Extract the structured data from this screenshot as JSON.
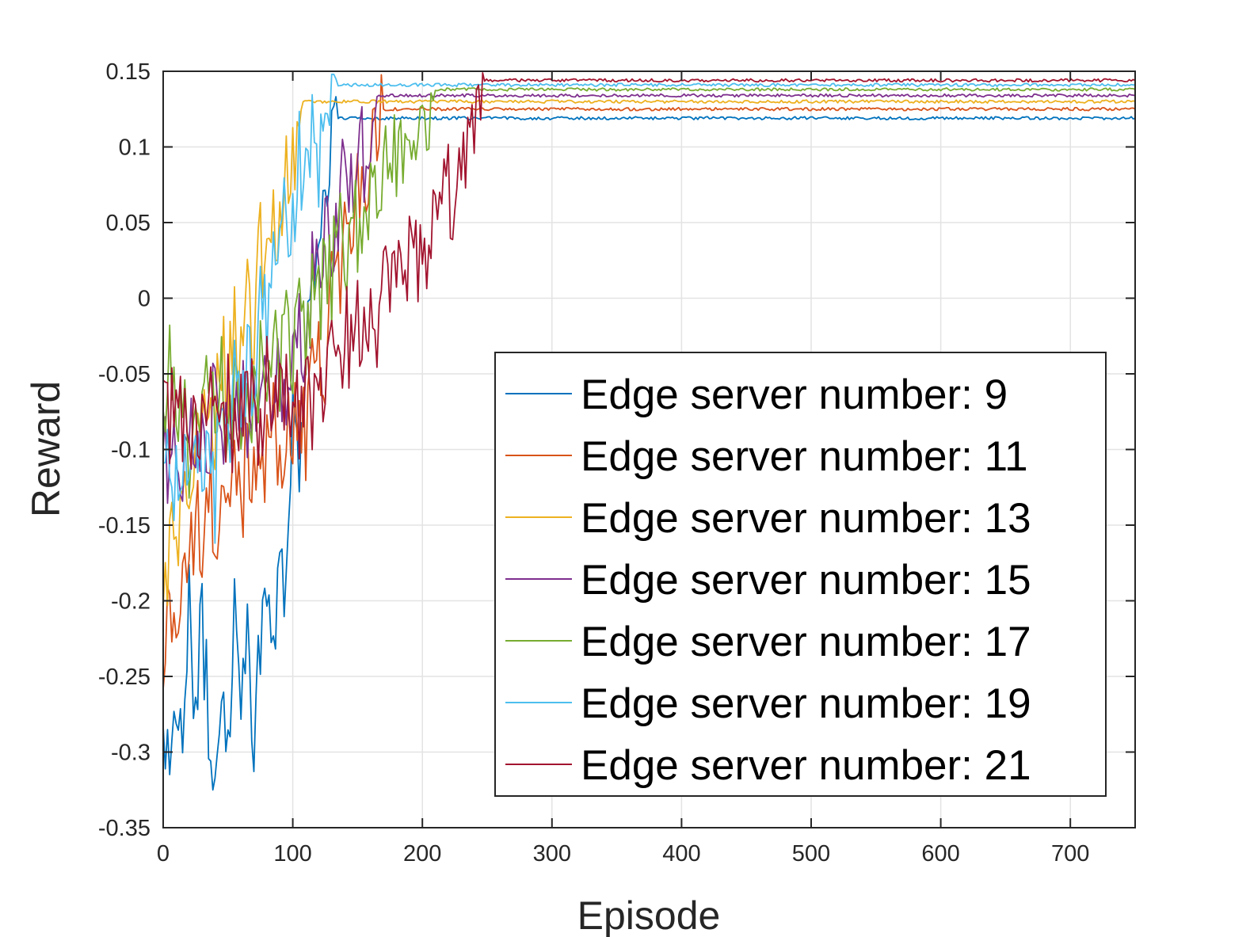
{
  "chart_data": {
    "type": "line",
    "title": "",
    "xlabel": "Episode",
    "ylabel": "Reward",
    "xlim": [
      0,
      750
    ],
    "ylim": [
      -0.35,
      0.15
    ],
    "xticks": [
      "0",
      "100",
      "200",
      "300",
      "400",
      "500",
      "600",
      "700"
    ],
    "yticks": [
      "0.15",
      "0.1",
      "0.05",
      "0",
      "-0.05",
      "-0.1",
      "-0.15",
      "-0.2",
      "-0.25",
      "-0.3",
      "-0.35"
    ],
    "grid": true,
    "legend_position": "lower-right",
    "series": [
      {
        "name": "Edge server number: 9",
        "color": "#0072BD",
        "converge_episode": 135,
        "final": 0.119,
        "points": [
          [
            0,
            -0.27
          ],
          [
            5,
            -0.31
          ],
          [
            10,
            -0.25
          ],
          [
            15,
            -0.3
          ],
          [
            20,
            -0.21
          ],
          [
            25,
            -0.26
          ],
          [
            30,
            -0.22
          ],
          [
            35,
            -0.28
          ],
          [
            40,
            -0.33
          ],
          [
            45,
            -0.24
          ],
          [
            50,
            -0.29
          ],
          [
            55,
            -0.2
          ],
          [
            60,
            -0.27
          ],
          [
            65,
            -0.19
          ],
          [
            70,
            -0.31
          ],
          [
            75,
            -0.22
          ],
          [
            80,
            -0.18
          ],
          [
            85,
            -0.24
          ],
          [
            90,
            -0.15
          ],
          [
            95,
            -0.19
          ],
          [
            100,
            -0.08
          ],
          [
            105,
            -0.11
          ],
          [
            110,
            -0.03
          ],
          [
            115,
            0.01
          ],
          [
            120,
            0.04
          ],
          [
            125,
            0.08
          ],
          [
            130,
            0.1
          ],
          [
            135,
            0.119
          ],
          [
            750,
            0.119
          ]
        ]
      },
      {
        "name": "Edge server number: 11",
        "color": "#D95319",
        "converge_episode": 170,
        "final": 0.125,
        "points": [
          [
            0,
            -0.25
          ],
          [
            5,
            -0.2
          ],
          [
            10,
            -0.22
          ],
          [
            15,
            -0.17
          ],
          [
            20,
            -0.19
          ],
          [
            25,
            -0.14
          ],
          [
            30,
            -0.18
          ],
          [
            35,
            -0.12
          ],
          [
            40,
            -0.16
          ],
          [
            45,
            -0.13
          ],
          [
            50,
            -0.15
          ],
          [
            55,
            -0.11
          ],
          [
            60,
            -0.14
          ],
          [
            65,
            -0.09
          ],
          [
            70,
            -0.12
          ],
          [
            75,
            -0.08
          ],
          [
            80,
            -0.11
          ],
          [
            85,
            -0.07
          ],
          [
            90,
            -0.13
          ],
          [
            95,
            -0.08
          ],
          [
            100,
            -0.1
          ],
          [
            105,
            -0.06
          ],
          [
            110,
            -0.09
          ],
          [
            115,
            -0.04
          ],
          [
            120,
            -0.02
          ],
          [
            125,
            -0.05
          ],
          [
            130,
            0.02
          ],
          [
            135,
            0.0
          ],
          [
            140,
            0.05
          ],
          [
            145,
            0.03
          ],
          [
            150,
            0.08
          ],
          [
            155,
            0.06
          ],
          [
            160,
            0.1
          ],
          [
            165,
            0.12
          ],
          [
            170,
            0.125
          ],
          [
            750,
            0.125
          ]
        ]
      },
      {
        "name": "Edge server number: 13",
        "color": "#EDB120",
        "converge_episode": 108,
        "final": 0.13,
        "points": [
          [
            0,
            -0.2
          ],
          [
            5,
            -0.16
          ],
          [
            10,
            -0.18
          ],
          [
            15,
            -0.12
          ],
          [
            20,
            -0.14
          ],
          [
            25,
            -0.09
          ],
          [
            30,
            -0.11
          ],
          [
            35,
            -0.06
          ],
          [
            40,
            -0.08
          ],
          [
            45,
            -0.03
          ],
          [
            50,
            -0.06
          ],
          [
            55,
            -0.01
          ],
          [
            60,
            -0.04
          ],
          [
            65,
            0.0
          ],
          [
            70,
            -0.02
          ],
          [
            75,
            0.03
          ],
          [
            80,
            0.02
          ],
          [
            85,
            0.06
          ],
          [
            90,
            0.05
          ],
          [
            95,
            0.09
          ],
          [
            100,
            0.08
          ],
          [
            105,
            0.11
          ],
          [
            108,
            0.13
          ],
          [
            750,
            0.13
          ]
        ]
      },
      {
        "name": "Edge server number: 15",
        "color": "#7E2F8E",
        "converge_episode": 165,
        "final": 0.134,
        "points": [
          [
            0,
            -0.1
          ],
          [
            5,
            -0.13
          ],
          [
            10,
            -0.09
          ],
          [
            15,
            -0.12
          ],
          [
            20,
            -0.08
          ],
          [
            25,
            -0.11
          ],
          [
            30,
            -0.07
          ],
          [
            35,
            -0.1
          ],
          [
            40,
            -0.06
          ],
          [
            45,
            -0.09
          ],
          [
            50,
            -0.07
          ],
          [
            55,
            -0.1
          ],
          [
            60,
            -0.06
          ],
          [
            65,
            -0.08
          ],
          [
            70,
            -0.05
          ],
          [
            75,
            -0.09
          ],
          [
            80,
            -0.06
          ],
          [
            85,
            -0.08
          ],
          [
            90,
            -0.04
          ],
          [
            95,
            -0.07
          ],
          [
            100,
            -0.03
          ],
          [
            105,
            -0.01
          ],
          [
            110,
            -0.04
          ],
          [
            115,
            0.02
          ],
          [
            120,
            0.0
          ],
          [
            125,
            0.04
          ],
          [
            130,
            0.03
          ],
          [
            135,
            0.06
          ],
          [
            140,
            0.08
          ],
          [
            145,
            0.07
          ],
          [
            150,
            0.1
          ],
          [
            155,
            0.09
          ],
          [
            160,
            0.12
          ],
          [
            165,
            0.134
          ],
          [
            750,
            0.134
          ]
        ]
      },
      {
        "name": "Edge server number: 17",
        "color": "#77AC30",
        "converge_episode": 210,
        "final": 0.138,
        "points": [
          [
            0,
            -0.08
          ],
          [
            5,
            -0.05
          ],
          [
            10,
            -0.09
          ],
          [
            15,
            -0.06
          ],
          [
            20,
            -0.1
          ],
          [
            25,
            -0.07
          ],
          [
            30,
            -0.09
          ],
          [
            35,
            -0.05
          ],
          [
            40,
            -0.08
          ],
          [
            45,
            -0.06
          ],
          [
            50,
            -0.09
          ],
          [
            55,
            -0.06
          ],
          [
            60,
            -0.08
          ],
          [
            65,
            -0.05
          ],
          [
            70,
            -0.07
          ],
          [
            75,
            -0.04
          ],
          [
            80,
            -0.06
          ],
          [
            85,
            -0.03
          ],
          [
            90,
            -0.05
          ],
          [
            95,
            -0.02
          ],
          [
            100,
            -0.04
          ],
          [
            105,
            -0.01
          ],
          [
            110,
            -0.03
          ],
          [
            115,
            0.0
          ],
          [
            120,
            -0.01
          ],
          [
            125,
            0.02
          ],
          [
            130,
            0.01
          ],
          [
            135,
            0.04
          ],
          [
            140,
            0.03
          ],
          [
            145,
            0.05
          ],
          [
            150,
            0.04
          ],
          [
            155,
            0.07
          ],
          [
            160,
            0.06
          ],
          [
            165,
            0.08
          ],
          [
            170,
            0.07
          ],
          [
            175,
            0.1
          ],
          [
            180,
            0.09
          ],
          [
            185,
            0.11
          ],
          [
            190,
            0.1
          ],
          [
            195,
            0.12
          ],
          [
            200,
            0.125
          ],
          [
            205,
            0.13
          ],
          [
            210,
            0.138
          ],
          [
            750,
            0.138
          ]
        ]
      },
      {
        "name": "Edge server number: 19",
        "color": "#4DBEEE",
        "converge_episode": 135,
        "final": 0.141,
        "points": [
          [
            0,
            -0.12
          ],
          [
            5,
            -0.09
          ],
          [
            10,
            -0.13
          ],
          [
            15,
            -0.1
          ],
          [
            20,
            -0.14
          ],
          [
            25,
            -0.09
          ],
          [
            30,
            -0.12
          ],
          [
            35,
            -0.08
          ],
          [
            40,
            -0.13
          ],
          [
            45,
            -0.07
          ],
          [
            50,
            -0.1
          ],
          [
            55,
            -0.05
          ],
          [
            60,
            -0.08
          ],
          [
            65,
            -0.03
          ],
          [
            70,
            -0.05
          ],
          [
            75,
            0.0
          ],
          [
            80,
            -0.02
          ],
          [
            85,
            0.04
          ],
          [
            90,
            0.02
          ],
          [
            95,
            0.06
          ],
          [
            100,
            0.05
          ],
          [
            105,
            0.09
          ],
          [
            110,
            0.07
          ],
          [
            115,
            0.1
          ],
          [
            120,
            0.09
          ],
          [
            125,
            0.12
          ],
          [
            130,
            0.13
          ],
          [
            135,
            0.141
          ],
          [
            750,
            0.141
          ]
        ]
      },
      {
        "name": "Edge server number: 21",
        "color": "#A2142F",
        "converge_episode": 248,
        "final": 0.144,
        "points": [
          [
            0,
            -0.07
          ],
          [
            5,
            -0.09
          ],
          [
            10,
            -0.05
          ],
          [
            15,
            -0.08
          ],
          [
            20,
            -0.1
          ],
          [
            25,
            -0.07
          ],
          [
            30,
            -0.09
          ],
          [
            35,
            -0.06
          ],
          [
            40,
            -0.08
          ],
          [
            45,
            -0.1
          ],
          [
            50,
            -0.07
          ],
          [
            55,
            -0.09
          ],
          [
            60,
            -0.06
          ],
          [
            65,
            -0.08
          ],
          [
            70,
            -0.07
          ],
          [
            75,
            -0.09
          ],
          [
            80,
            -0.06
          ],
          [
            85,
            -0.08
          ],
          [
            90,
            -0.05
          ],
          [
            95,
            -0.07
          ],
          [
            100,
            -0.06
          ],
          [
            105,
            -0.08
          ],
          [
            110,
            -0.05
          ],
          [
            115,
            -0.07
          ],
          [
            120,
            -0.04
          ],
          [
            125,
            -0.06
          ],
          [
            130,
            -0.03
          ],
          [
            135,
            -0.05
          ],
          [
            140,
            -0.02
          ],
          [
            145,
            -0.04
          ],
          [
            150,
            -0.01
          ],
          [
            155,
            -0.03
          ],
          [
            160,
            0.0
          ],
          [
            165,
            -0.02
          ],
          [
            170,
            0.01
          ],
          [
            175,
            -0.01
          ],
          [
            180,
            0.02
          ],
          [
            185,
            0.01
          ],
          [
            190,
            0.03
          ],
          [
            195,
            0.02
          ],
          [
            200,
            0.04
          ],
          [
            205,
            0.03
          ],
          [
            210,
            0.05
          ],
          [
            215,
            0.06
          ],
          [
            220,
            0.07
          ],
          [
            225,
            0.06
          ],
          [
            230,
            0.08
          ],
          [
            235,
            0.09
          ],
          [
            240,
            0.1
          ],
          [
            245,
            0.11
          ],
          [
            248,
            0.144
          ],
          [
            750,
            0.144
          ]
        ]
      }
    ]
  }
}
